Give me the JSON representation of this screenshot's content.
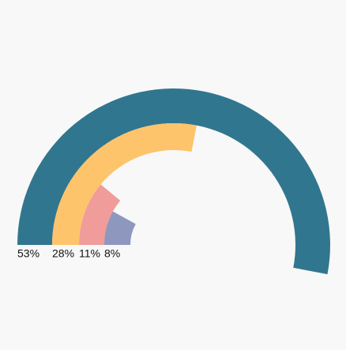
{
  "chart_data": {
    "type": "radial_bar",
    "values": [
      53,
      28,
      11,
      8
    ],
    "value_labels": [
      "53%",
      "28%",
      "11%",
      "8%"
    ],
    "colors": [
      "#31768f",
      "#fdc46b",
      "#ef9c9a",
      "#8e97bd"
    ],
    "xlim": [
      0,
      100
    ]
  }
}
